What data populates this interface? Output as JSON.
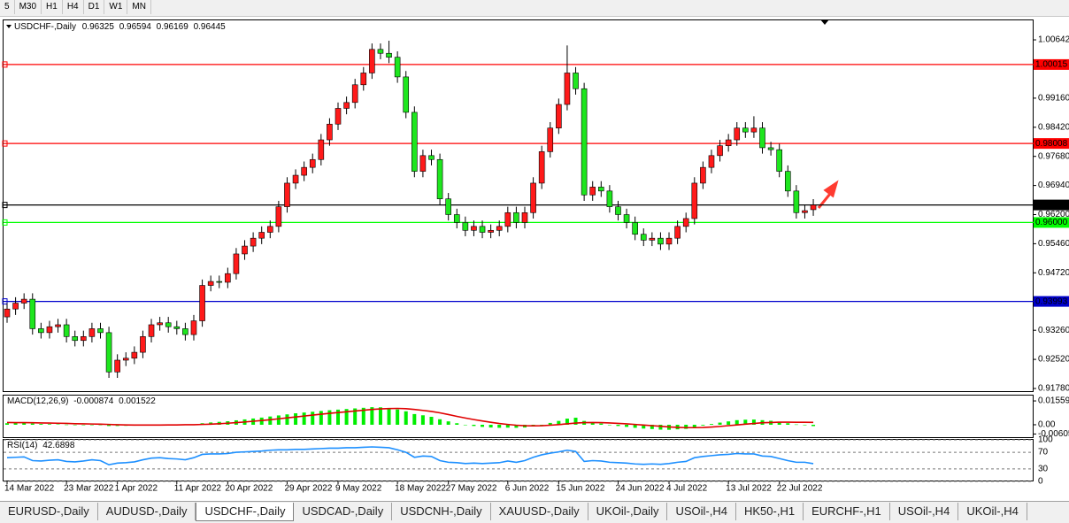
{
  "toolbar": {
    "timeframes": [
      "5",
      "M30",
      "H1",
      "H4",
      "D1",
      "W1",
      "MN"
    ]
  },
  "tabs": [
    "EURUSD-,Daily",
    "AUDUSD-,Daily",
    "USDCHF-,Daily",
    "USDCAD-,Daily",
    "USDCNH-,Daily",
    "XAUUSD-,Daily",
    "UKOil-,Daily",
    "USOil-,H4",
    "HK50-,H1",
    "EURCHF-,H1",
    "USOil-,H4",
    "UKOil-,H4"
  ],
  "active_tab": 2,
  "chart_data": [
    {
      "type": "candlestick",
      "title": "USDCHF-,Daily",
      "categories": [
        "14 Mar 2022",
        null,
        null,
        null,
        null,
        null,
        null,
        "23 Mar 2022",
        null,
        null,
        null,
        null,
        null,
        "1 Apr 2022",
        null,
        null,
        null,
        null,
        null,
        null,
        "11 Apr 2022",
        null,
        null,
        null,
        null,
        null,
        "20 Apr 2022",
        null,
        null,
        null,
        null,
        null,
        null,
        "29 Apr 2022",
        null,
        null,
        null,
        null,
        null,
        "9 May 2022",
        null,
        null,
        null,
        null,
        null,
        null,
        "18 May 2022",
        null,
        null,
        null,
        null,
        null,
        "27 May 2022",
        null,
        null,
        null,
        null,
        null,
        null,
        "6 Jun 2022",
        null,
        null,
        null,
        null,
        null,
        "15 Jun 2022",
        null,
        null,
        null,
        null,
        null,
        null,
        "24 Jun 2022",
        null,
        null,
        null,
        null,
        null,
        "4 Jul 2022",
        null,
        null,
        null,
        null,
        null,
        null,
        "13 Jul 2022",
        null,
        null,
        null,
        null,
        null,
        "22 Jul 2022",
        null,
        null,
        null,
        null
      ],
      "open": [
        0.936,
        0.938,
        0.9395,
        0.9405,
        0.933,
        0.932,
        0.9335,
        0.934,
        0.931,
        0.93,
        0.931,
        0.933,
        0.932,
        0.922,
        0.925,
        0.9255,
        0.927,
        0.931,
        0.934,
        0.9345,
        0.9335,
        0.933,
        0.9315,
        0.935,
        0.944,
        0.945,
        0.9448,
        0.947,
        0.952,
        0.954,
        0.956,
        0.9575,
        0.959,
        0.964,
        0.97,
        0.972,
        0.974,
        0.976,
        0.981,
        0.985,
        0.989,
        0.9905,
        0.995,
        0.998,
        1.004,
        1.003,
        1.002,
        0.997,
        0.988,
        0.973,
        0.977,
        0.976,
        0.966,
        0.962,
        0.96,
        0.958,
        0.959,
        0.9575,
        0.958,
        0.959,
        0.9625,
        0.96,
        0.9625,
        0.97,
        0.978,
        0.984,
        0.99,
        0.998,
        0.994,
        0.967,
        0.969,
        0.968,
        0.964,
        0.962,
        0.96,
        0.957,
        0.9555,
        0.956,
        0.9545,
        0.956,
        0.959,
        0.961,
        0.97,
        0.974,
        0.977,
        0.9795,
        0.981,
        0.984,
        0.983,
        0.984,
        0.979,
        0.9785,
        0.973,
        0.968,
        0.9625,
        0.96325
      ],
      "high": [
        0.9395,
        0.941,
        0.942,
        0.942,
        0.9345,
        0.935,
        0.9355,
        0.9355,
        0.9325,
        0.9325,
        0.9345,
        0.9345,
        0.9335,
        0.9265,
        0.927,
        0.9285,
        0.9325,
        0.9355,
        0.936,
        0.936,
        0.935,
        0.9345,
        0.9365,
        0.9455,
        0.9465,
        0.9465,
        0.9485,
        0.9535,
        0.9555,
        0.9575,
        0.959,
        0.9605,
        0.9655,
        0.9715,
        0.9735,
        0.9755,
        0.9775,
        0.9825,
        0.9865,
        0.9905,
        0.992,
        0.9965,
        0.9995,
        1.0055,
        1.0055,
        1.0062,
        1.0035,
        0.9985,
        0.9895,
        0.9785,
        0.9785,
        0.9775,
        0.9675,
        0.9635,
        0.9615,
        0.9605,
        0.9605,
        0.9595,
        0.9605,
        0.964,
        0.964,
        0.964,
        0.9715,
        0.9795,
        0.9855,
        0.9915,
        1.005,
        0.9995,
        0.9955,
        0.9705,
        0.9705,
        0.9695,
        0.9655,
        0.9635,
        0.9615,
        0.9585,
        0.9575,
        0.9575,
        0.9575,
        0.9605,
        0.9625,
        0.9715,
        0.9755,
        0.9785,
        0.981,
        0.9825,
        0.9855,
        0.9855,
        0.987,
        0.9855,
        0.9805,
        0.98,
        0.9745,
        0.9695,
        0.9645,
        0.96594
      ],
      "low": [
        0.9345,
        0.9365,
        0.938,
        0.9315,
        0.9305,
        0.9305,
        0.932,
        0.9295,
        0.9285,
        0.9285,
        0.9295,
        0.9305,
        0.9205,
        0.9205,
        0.9235,
        0.924,
        0.9255,
        0.9295,
        0.9325,
        0.932,
        0.9315,
        0.93,
        0.93,
        0.9335,
        0.9425,
        0.9433,
        0.9433,
        0.9455,
        0.9505,
        0.9525,
        0.9545,
        0.956,
        0.9575,
        0.9625,
        0.9685,
        0.9705,
        0.9725,
        0.9745,
        0.9795,
        0.9835,
        0.9875,
        0.989,
        0.9935,
        0.9965,
        1.0015,
        1.0005,
        0.9955,
        0.9865,
        0.9715,
        0.9715,
        0.9745,
        0.9645,
        0.9605,
        0.9585,
        0.9565,
        0.9565,
        0.956,
        0.956,
        0.9565,
        0.9575,
        0.9585,
        0.9585,
        0.961,
        0.9685,
        0.9765,
        0.9825,
        0.9885,
        0.9925,
        0.9655,
        0.9655,
        0.9665,
        0.9625,
        0.9605,
        0.9585,
        0.9555,
        0.954,
        0.954,
        0.953,
        0.953,
        0.9545,
        0.9575,
        0.9595,
        0.9685,
        0.9725,
        0.9755,
        0.978,
        0.9795,
        0.9815,
        0.9815,
        0.9775,
        0.977,
        0.9715,
        0.9665,
        0.961,
        0.961,
        0.96169
      ],
      "close": [
        0.938,
        0.9395,
        0.9405,
        0.933,
        0.932,
        0.9335,
        0.934,
        0.931,
        0.93,
        0.931,
        0.933,
        0.932,
        0.922,
        0.925,
        0.9255,
        0.927,
        0.931,
        0.934,
        0.9345,
        0.9335,
        0.933,
        0.9315,
        0.935,
        0.944,
        0.945,
        0.9448,
        0.947,
        0.952,
        0.954,
        0.956,
        0.9575,
        0.959,
        0.964,
        0.97,
        0.972,
        0.974,
        0.976,
        0.981,
        0.985,
        0.989,
        0.9905,
        0.995,
        0.998,
        1.004,
        1.003,
        1.002,
        0.997,
        0.988,
        0.973,
        0.977,
        0.976,
        0.966,
        0.962,
        0.96,
        0.958,
        0.959,
        0.9575,
        0.958,
        0.959,
        0.9625,
        0.96,
        0.9625,
        0.97,
        0.978,
        0.984,
        0.99,
        0.998,
        0.994,
        0.967,
        0.969,
        0.968,
        0.964,
        0.962,
        0.96,
        0.957,
        0.9555,
        0.956,
        0.9545,
        0.956,
        0.959,
        0.961,
        0.97,
        0.974,
        0.977,
        0.9795,
        0.981,
        0.984,
        0.983,
        0.984,
        0.979,
        0.9785,
        0.973,
        0.968,
        0.9625,
        0.963,
        0.96445
      ],
      "up_color": "#ff1a1a",
      "down_color": "#1ee61e",
      "ylim": [
        0.9169,
        1.0116
      ],
      "yticks": [
        1.00642,
        {
          "value": 0.9916,
          "label": "0.99160"
        },
        {
          "value": 0.9842,
          "label": "0.98420"
        },
        {
          "value": 0.9768,
          "label": "0.97680"
        },
        {
          "value": 0.9694,
          "label": "0.96940"
        },
        {
          "value": 0.962,
          "label": "0.96200"
        },
        {
          "value": 0.9546,
          "label": "0.95460"
        },
        {
          "value": 0.9472,
          "label": "0.94720"
        },
        {
          "value": 0.9326,
          "label": "0.93260"
        },
        {
          "value": 0.9252,
          "label": "0.92520"
        },
        {
          "value": 0.9178,
          "label": "0.91780"
        }
      ],
      "levels": [
        {
          "value": 1.00015,
          "color": "#ff0000"
        },
        {
          "value": 0.98008,
          "color": "#ff0000"
        },
        {
          "value": 0.96,
          "label": "0.96000",
          "color": "#00ff00"
        },
        {
          "value": 0.93993,
          "color": "#0000cc"
        }
      ]
    },
    {
      "type": "macd",
      "title": "MACD(12,26,9)",
      "series": [
        {
          "name": "MACD",
          "color": "#00ee00",
          "values": [
            0.001,
            0.0012,
            0.0013,
            0.0008,
            0.0005,
            0.0004,
            0.0003,
            0.0001,
            -0.0001,
            -0.0001,
            0.0,
            0.0,
            -0.0008,
            -0.0008,
            -0.0007,
            -0.0006,
            -0.0004,
            -0.0002,
            0.0,
            0.0001,
            0.0001,
            0.0001,
            0.0002,
            0.001,
            0.0015,
            0.0019,
            0.0023,
            0.0029,
            0.0035,
            0.0041,
            0.0047,
            0.0054,
            0.0061,
            0.0068,
            0.0075,
            0.008,
            0.0085,
            0.009,
            0.0095,
            0.0099,
            0.0103,
            0.0107,
            0.0111,
            0.0115,
            0.0114,
            0.011,
            0.01,
            0.0088,
            0.007,
            0.0062,
            0.0052,
            0.0036,
            0.0022,
            0.001,
            0.0,
            -0.0008,
            -0.0014,
            -0.0018,
            -0.002,
            -0.0019,
            -0.002,
            -0.0018,
            -0.001,
            0.0,
            0.0012,
            0.0025,
            0.004,
            0.0046,
            0.0025,
            0.0015,
            0.0008,
            0.0,
            -0.0008,
            -0.0014,
            -0.002,
            -0.0025,
            -0.0028,
            -0.0032,
            -0.0033,
            -0.003,
            -0.0027,
            -0.0015,
            -0.0005,
            0.0005,
            0.0014,
            0.0022,
            0.003,
            0.0033,
            0.0034,
            0.003,
            0.0026,
            0.0018,
            0.001,
            0.0002,
            -0.0003,
            -0.000874
          ]
        },
        {
          "name": "Signal",
          "color": "#e00000",
          "values": [
            0.0015,
            0.0014,
            0.0014,
            0.0013,
            0.0012,
            0.0011,
            0.001,
            0.0009,
            0.0007,
            0.0006,
            0.0005,
            0.0004,
            0.0002,
            0.0,
            -0.0001,
            -0.0002,
            -0.0002,
            -0.0002,
            -0.0002,
            -0.0001,
            -0.0001,
            0.0,
            0.0,
            0.0002,
            0.0004,
            0.0007,
            0.001,
            0.0014,
            0.0018,
            0.0023,
            0.0028,
            0.0033,
            0.0039,
            0.0045,
            0.0051,
            0.0057,
            0.0063,
            0.0069,
            0.0075,
            0.008,
            0.0085,
            0.009,
            0.0095,
            0.01,
            0.0104,
            0.0106,
            0.0107,
            0.0105,
            0.01,
            0.0094,
            0.0087,
            0.0078,
            0.0067,
            0.0055,
            0.0044,
            0.0034,
            0.0025,
            0.0016,
            0.0008,
            0.0002,
            -0.0003,
            -0.0006,
            -0.0007,
            -0.0006,
            -0.0003,
            0.0001,
            0.0006,
            0.0011,
            0.0014,
            0.0015,
            0.0014,
            0.0012,
            0.0009,
            0.0006,
            0.0002,
            -0.0002,
            -0.0006,
            -0.001,
            -0.0014,
            -0.0017,
            -0.0019,
            -0.0019,
            -0.0018,
            -0.0015,
            -0.0011,
            -0.0006,
            -0.0001,
            0.0004,
            0.0008,
            0.0013,
            0.0015,
            0.0017,
            0.0017,
            0.0016,
            0.0016,
            0.001522
          ]
        }
      ],
      "ylim": [
        -0.0087,
        0.0191
      ],
      "yticks": [
        0.015596,
        {
          "value": 0,
          "label": "0.00"
        },
        -0.006055
      ]
    },
    {
      "type": "line",
      "title": "RSI(14)",
      "series": [
        {
          "name": "RSI",
          "color": "#1e90ff",
          "values": [
            57,
            58,
            59,
            50,
            49,
            51,
            52,
            48,
            47,
            49,
            52,
            50,
            40,
            44,
            45,
            47,
            52,
            56,
            57,
            55,
            54,
            52,
            57,
            65,
            66,
            66,
            67,
            70,
            71,
            72,
            73,
            75,
            76,
            76,
            77,
            77,
            78,
            79,
            80,
            80,
            81,
            81,
            82,
            83,
            82,
            81,
            76,
            70,
            58,
            61,
            60,
            50,
            46,
            45,
            43,
            44,
            43,
            44,
            45,
            49,
            46,
            50,
            58,
            64,
            68,
            71,
            75,
            72,
            48,
            50,
            49,
            46,
            45,
            44,
            42,
            41,
            42,
            41,
            43,
            46,
            48,
            57,
            60,
            62,
            64,
            65,
            67,
            66,
            66,
            61,
            60,
            55,
            50,
            46,
            46,
            42.6898
          ]
        }
      ],
      "ylim": [
        0,
        100
      ],
      "yticks": [
        100,
        70,
        30,
        0
      ]
    }
  ]
}
